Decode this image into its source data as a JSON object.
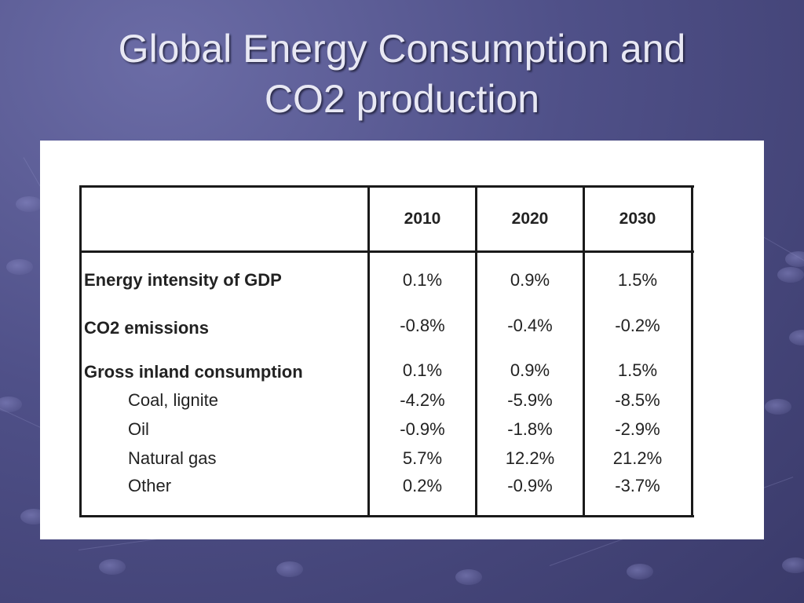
{
  "slide": {
    "title_line1": "Global Energy Consumption and",
    "title_line2": "CO2 production"
  },
  "table": {
    "columns": [
      "2010",
      "2020",
      "2030"
    ],
    "rows": [
      {
        "label": "Energy intensity of GDP",
        "values": [
          "0.1%",
          "0.9%",
          "1.5%"
        ]
      },
      {
        "label": "CO2 emissions",
        "values": [
          "-0.8%",
          "-0.4%",
          "-0.2%"
        ]
      },
      {
        "label": "Gross inland consumption",
        "values": [
          "0.1%",
          "0.9%",
          "1.5%"
        ]
      },
      {
        "label": "Coal, lignite",
        "values": [
          "-4.2%",
          "-5.9%",
          "-8.5%"
        ]
      },
      {
        "label": "Oil",
        "values": [
          "-0.9%",
          "-1.8%",
          "-2.9%"
        ]
      },
      {
        "label": "Natural gas",
        "values": [
          "5.7%",
          "12.2%",
          "21.2%"
        ]
      },
      {
        "label": "Other",
        "values": [
          "0.2%",
          "-0.9%",
          "-3.7%"
        ]
      }
    ]
  }
}
